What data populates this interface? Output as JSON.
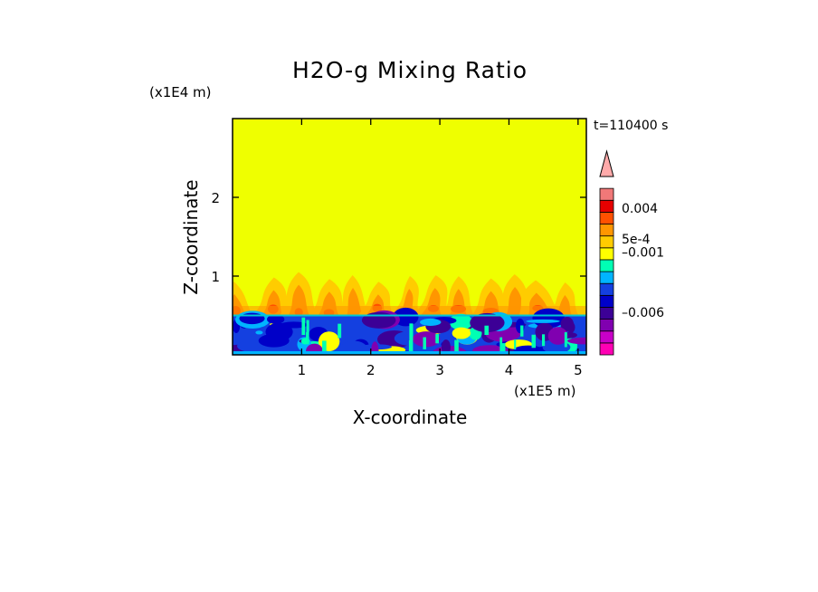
{
  "chart_data": {
    "type": "heatmap",
    "title": "H2O-g Mixing Ratio",
    "xlabel": "X-coordinate",
    "ylabel": "Z-coordinate",
    "x_scale_label": "(x1E5 m)",
    "y_scale_label": "(x1E4 m)",
    "time_label": "t=110400 s",
    "xlim": [
      0,
      5.12
    ],
    "ylim": [
      0,
      3.0
    ],
    "x_ticks": [
      {
        "value": 1,
        "label": "1"
      },
      {
        "value": 2,
        "label": "2"
      },
      {
        "value": 3,
        "label": "3"
      },
      {
        "value": 4,
        "label": "4"
      },
      {
        "value": 5,
        "label": "5"
      }
    ],
    "y_ticks": [
      {
        "value": 1,
        "label": "1"
      },
      {
        "value": 2,
        "label": "2"
      }
    ],
    "colorbar": {
      "colors": [
        "#ff00b4",
        "#c800c8",
        "#8000b0",
        "#3c0096",
        "#0000c8",
        "#1440e0",
        "#00b4ff",
        "#00ffb4",
        "#ffff00",
        "#ffcc00",
        "#ff9600",
        "#ff5000",
        "#e60000",
        "#f07878",
        "#ffaaaa"
      ],
      "tick_labels": [
        {
          "label": "0.004",
          "level": 11.5
        },
        {
          "label": "5e-4",
          "level": 9.1
        },
        {
          "label": "–0.001",
          "level": 8.05
        },
        {
          "label": "–0.006",
          "level": 3.35
        }
      ]
    },
    "colors": {
      "background_field": "#efff00",
      "boundary_line": "#00c8d2"
    }
  }
}
